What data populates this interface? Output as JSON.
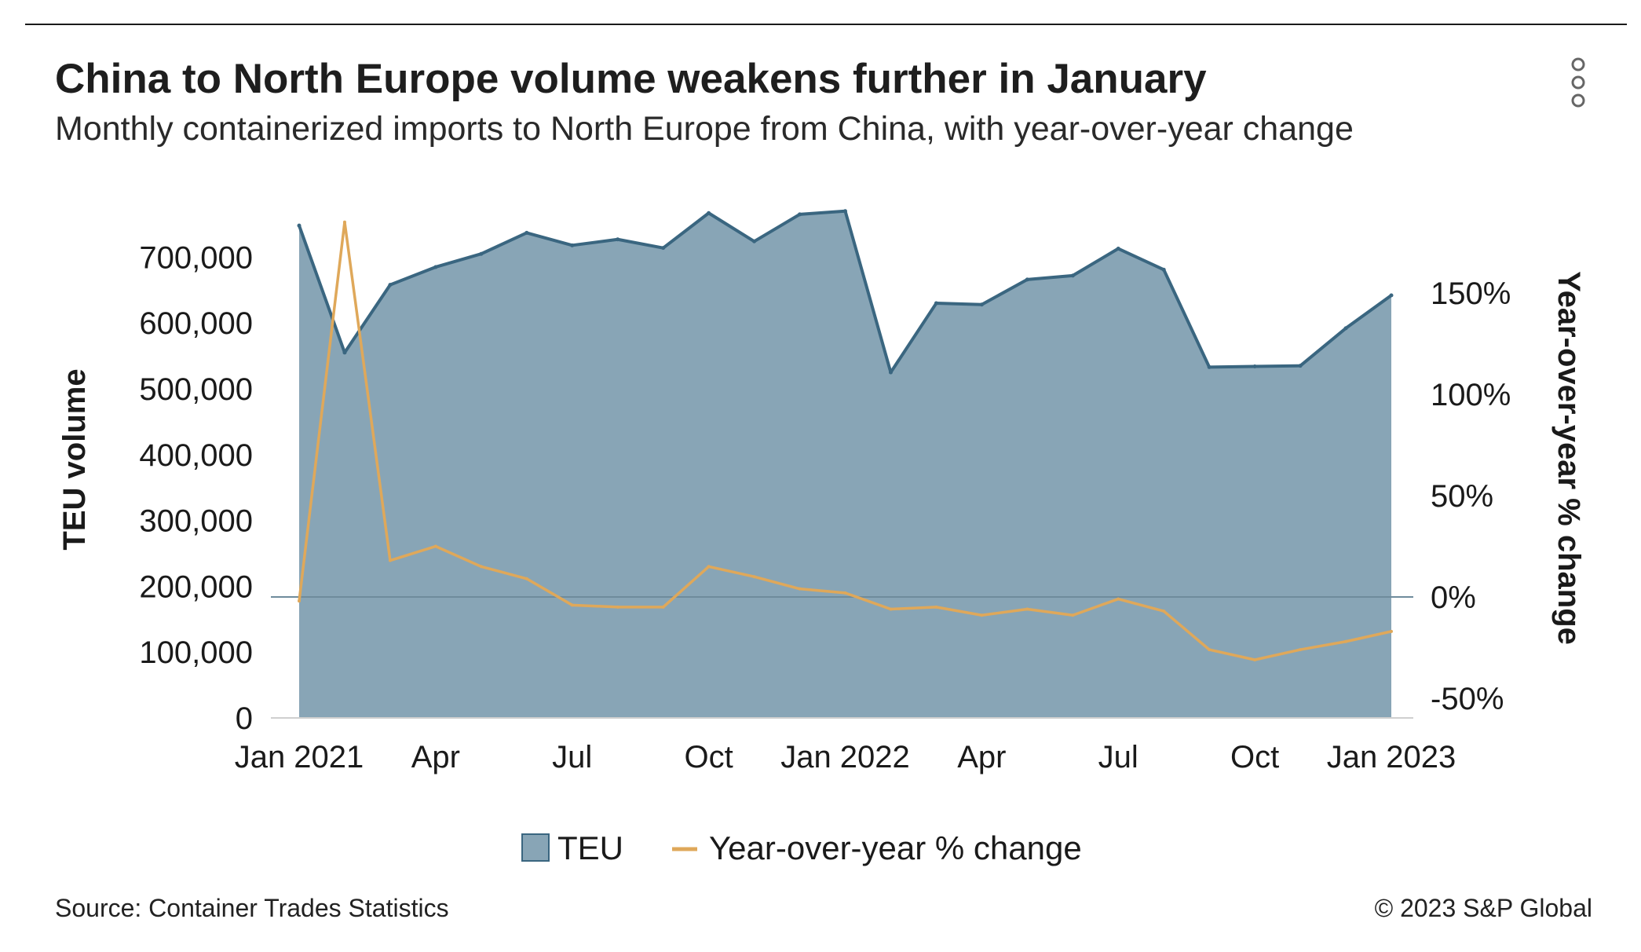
{
  "header": {
    "title": "China to North Europe volume weakens further in January",
    "subtitle": "Monthly containerized imports to North Europe from China, with year-over-year change",
    "menu_icon": "more-vertical-icon"
  },
  "footer": {
    "source": "Source: Container Trades Statistics",
    "copyright": "© 2023 S&P Global"
  },
  "colors": {
    "teu_fill": "#88a5b6",
    "teu_line": "#3a6680",
    "yoy_line": "#dfa85a",
    "zero_line": "#6f8c9c"
  },
  "chart_data": {
    "type": "area",
    "ylabel": "TEU volume",
    "y2label": "Year-over-year % change",
    "x_tick_labels": [
      "Jan 2021",
      "Apr",
      "Jul",
      "Oct",
      "Jan 2022",
      "Apr",
      "Jul",
      "Oct",
      "Jan 2023"
    ],
    "y_ticks": [
      "0",
      "100,000",
      "200,000",
      "300,000",
      "400,000",
      "500,000",
      "600,000",
      "700,000"
    ],
    "y2_ticks": [
      "-50%",
      "0%",
      "50%",
      "100%",
      "150%"
    ],
    "ylim": [
      0,
      750000
    ],
    "y2lim": [
      -60,
      190
    ],
    "grid": false,
    "legend_position": "bottom",
    "x": [
      "2021-01",
      "2021-02",
      "2021-03",
      "2021-04",
      "2021-05",
      "2021-06",
      "2021-07",
      "2021-08",
      "2021-09",
      "2021-10",
      "2021-11",
      "2021-12",
      "2022-01",
      "2022-02",
      "2022-03",
      "2022-04",
      "2022-05",
      "2022-06",
      "2022-07",
      "2022-08",
      "2022-09",
      "2022-10",
      "2022-11",
      "2022-12",
      "2023-01"
    ],
    "series": [
      {
        "name": "TEU",
        "kind": "area",
        "axis": "left",
        "values": [
          748000,
          555000,
          658000,
          685000,
          705000,
          737000,
          718000,
          727000,
          714000,
          767000,
          724000,
          765000,
          770000,
          525000,
          630000,
          628000,
          666000,
          672000,
          713000,
          681000,
          533000,
          534000,
          535000,
          592000,
          642000
        ]
      },
      {
        "name": "Year-over-year % change",
        "kind": "line",
        "axis": "right",
        "values": [
          -2,
          185,
          18,
          25,
          15,
          9,
          -4,
          -5,
          -5,
          15,
          10,
          4,
          2,
          -6,
          -5,
          -9,
          -6,
          -9,
          -1,
          -7,
          -26,
          -31,
          -26,
          -22,
          -17
        ]
      }
    ]
  }
}
